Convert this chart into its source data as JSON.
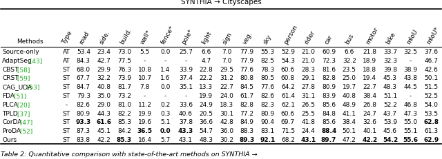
{
  "title": "SYNTHIA → Cityscapes",
  "caption": "Table 2: Quantitative comparison with state-of-the-art methods on SYNTHIA →",
  "col_headers": [
    "Type",
    "road",
    "side.",
    "build.",
    "wall*",
    "fence*",
    "pole*",
    "light",
    "sign",
    "veg.",
    "sky",
    "person",
    "rider",
    "car",
    "bus",
    "motor",
    "bike",
    "mIoU",
    "mIoU*"
  ],
  "rows": [
    [
      "Source-only",
      "",
      "AT",
      "53.4",
      "23.4",
      "73.0",
      "5.5",
      "0.0",
      "25.7",
      "6.6",
      "7.0",
      "77.9",
      "55.3",
      "52.9",
      "21.0",
      "60.9",
      "6.6",
      "21.8",
      "33.7",
      "32.5",
      "37.6"
    ],
    [
      "AdaptSeg",
      "43",
      "AT",
      "84.3",
      "42.7",
      "77.5",
      "-",
      "-",
      "-",
      "4.7",
      "7.0",
      "77.9",
      "82.5",
      "54.3",
      "21.0",
      "72.3",
      "32.2",
      "18.9",
      "32.3",
      "-",
      "46.7"
    ],
    [
      "CBST",
      "58",
      "ST",
      "68.0",
      "29.9",
      "76.3",
      "10.8",
      "1.4",
      "33.9",
      "22.8",
      "29.5",
      "77.6",
      "78.3",
      "60.6",
      "28.3",
      "81.6",
      "23.5",
      "18.8",
      "39.8",
      "38.9",
      "42.6"
    ],
    [
      "CRST",
      "59",
      "ST",
      "67.7",
      "32.2",
      "73.9",
      "10.7",
      "1.6",
      "37.4",
      "22.2",
      "31.2",
      "80.8",
      "80.5",
      "60.8",
      "29.1",
      "82.8",
      "25.0",
      "19.4",
      "45.3",
      "43.8",
      "50.1"
    ],
    [
      "CAG_UDA",
      "53",
      "ST",
      "84.7",
      "40.8",
      "81.7",
      "7.8",
      "0.0",
      "35.1",
      "13.3",
      "22.7",
      "84.5",
      "77.6",
      "64.2",
      "27.8",
      "80.9",
      "19.7",
      "22.7",
      "48.3",
      "44.5",
      "51.5"
    ],
    [
      "FDA",
      "51",
      "ST",
      "79.3",
      "35.0",
      "73.2",
      "-",
      "-",
      "-",
      "19.9",
      "24.0",
      "61.7",
      "82.6",
      "61.4",
      "31.1",
      "83.9",
      "40.8",
      "38.4",
      "51.1",
      "-",
      "52.5"
    ],
    [
      "PLCA",
      "20",
      "-",
      "82.6",
      "29.0",
      "81.0",
      "11.2",
      "0.2",
      "33.6",
      "24.9",
      "18.3",
      "82.8",
      "82.3",
      "62.1",
      "26.5",
      "85.6",
      "48.9",
      "26.8",
      "52.2",
      "46.8",
      "54.0"
    ],
    [
      "TPLD",
      "37",
      "ST",
      "80.9",
      "44.3",
      "82.2",
      "19.9",
      "0.3",
      "40.6",
      "20.5",
      "30.1",
      "77.2",
      "80.9",
      "60.6",
      "25.5",
      "84.8",
      "41.1",
      "24.7",
      "43.7",
      "47.3",
      "53.5"
    ],
    [
      "CorDA",
      "47",
      "ST",
      "93.3",
      "61.6",
      "85.3",
      "19.6",
      "5.1",
      "37.8",
      "36.6",
      "42.8",
      "84.9",
      "90.4",
      "69.7",
      "41.8",
      "85.6",
      "38.4",
      "32.6",
      "53.9",
      "55.0",
      "62.8"
    ],
    [
      "ProDA",
      "52",
      "ST",
      "87.3",
      "45.1",
      "84.2",
      "36.5",
      "0.0",
      "43.3",
      "54.7",
      "36.0",
      "88.3",
      "83.1",
      "71.5",
      "24.4",
      "88.4",
      "50.1",
      "40.1",
      "45.6",
      "55.1",
      "61.3"
    ],
    [
      "Ours",
      "",
      "ST",
      "83.8",
      "42.2",
      "85.3",
      "16.4",
      "5.7",
      "43.1",
      "48.3",
      "30.2",
      "89.3",
      "92.1",
      "68.2",
      "43.1",
      "89.7",
      "47.2",
      "42.2",
      "54.2",
      "55.6",
      "62.9"
    ]
  ],
  "bold_cells": {
    "8": [
      3,
      4,
      20
    ],
    "9": [
      6,
      7,
      8,
      15
    ],
    "10": [
      5,
      11,
      12,
      14,
      15,
      17,
      18,
      19,
      20
    ]
  },
  "bg_color": "#ffffff",
  "font_size": 6.5,
  "title_font_size": 7.5,
  "caption_font_size": 6.8
}
